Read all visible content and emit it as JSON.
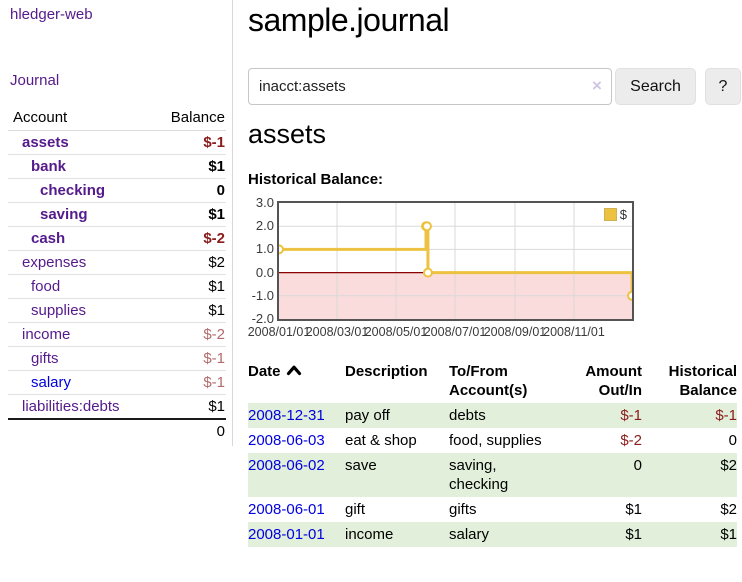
{
  "app_title": "hledger-web",
  "sidebar": {
    "journal_link": "Journal",
    "accounts_table": {
      "headers": {
        "account": "Account",
        "balance": "Balance"
      },
      "rows": [
        {
          "name": "assets",
          "balance": "$-1",
          "indent": 0,
          "bold": true,
          "balance_color": "negative"
        },
        {
          "name": "bank",
          "balance": "$1",
          "indent": 1,
          "bold": true,
          "balance_color": "normal"
        },
        {
          "name": "checking",
          "balance": "0",
          "indent": 2,
          "bold": true,
          "balance_color": "normal"
        },
        {
          "name": "saving",
          "balance": "$1",
          "indent": 2,
          "bold": true,
          "balance_color": "normal"
        },
        {
          "name": "cash",
          "balance": "$-2",
          "indent": 1,
          "bold": true,
          "balance_color": "negative"
        },
        {
          "name": "expenses",
          "balance": "$2",
          "indent": 0,
          "bold": false,
          "balance_color": "normal"
        },
        {
          "name": "food",
          "balance": "$1",
          "indent": 1,
          "bold": false,
          "balance_color": "normal"
        },
        {
          "name": "supplies",
          "balance": "$1",
          "indent": 1,
          "bold": false,
          "balance_color": "normal"
        },
        {
          "name": "income",
          "balance": "$-2",
          "indent": 0,
          "bold": false,
          "balance_color": "negative-muted"
        },
        {
          "name": "gifts",
          "balance": "$-1",
          "indent": 1,
          "bold": false,
          "balance_color": "negative-muted"
        },
        {
          "name": "salary",
          "balance": "$-1",
          "indent": 1,
          "bold": false,
          "balance_color": "negative-muted",
          "link_style": "unvisited"
        },
        {
          "name": "liabilities:debts",
          "balance": "$1",
          "indent": 0,
          "bold": false,
          "balance_color": "normal"
        }
      ],
      "total": "0"
    }
  },
  "header": {
    "title": "sample.journal"
  },
  "search": {
    "value": "inacct:assets",
    "clear_icon": "×",
    "button_label": "Search",
    "help_label": "?"
  },
  "account_page": {
    "heading": "assets",
    "chart_label": "Historical Balance:"
  },
  "chart_data": {
    "type": "line",
    "step": true,
    "title": "Historical Balance:",
    "series": [
      {
        "name": "$",
        "color": "#EDC240",
        "points": [
          [
            "2008-01-01",
            1
          ],
          [
            "2008-06-01",
            2
          ],
          [
            "2008-06-02",
            2
          ],
          [
            "2008-06-03",
            0
          ],
          [
            "2008-12-31",
            -1
          ]
        ]
      }
    ],
    "xlim": [
      "2008-01-01",
      "2008-12-31"
    ],
    "ylim": [
      -2,
      3
    ],
    "x_tick_labels": [
      "2008/01/01",
      "2008/03/01",
      "2008/05/01",
      "2008/07/01",
      "2008/09/01",
      "2008/11/01"
    ],
    "x_tick_dates": [
      "2008-01-01",
      "2008-03-01",
      "2008-05-01",
      "2008-07-01",
      "2008-09-01",
      "2008-11-01"
    ],
    "y_tick_labels": [
      "3.0",
      "2.0",
      "1.0",
      "0.0",
      "-1.0",
      "-2.0"
    ],
    "y_tick_values": [
      3,
      2,
      1,
      0,
      -1,
      -2
    ],
    "grid": true,
    "legend_position": "top-right",
    "negative_region_color": "#fbdcdc",
    "zero_line_color": "#8b0000",
    "grid_color": "#d9d9d9",
    "border_color": "#545454"
  },
  "register": {
    "columns": [
      {
        "line1": "Date",
        "line2": "",
        "align": "left",
        "sortable": true
      },
      {
        "line1": "Description",
        "line2": "",
        "align": "left"
      },
      {
        "line1": "To/From",
        "line2": "Account(s)",
        "align": "left"
      },
      {
        "line1": "Amount",
        "line2": "Out/In",
        "align": "right"
      },
      {
        "line1": "Historical",
        "line2": "Balance",
        "align": "right"
      }
    ],
    "rows": [
      {
        "date": "2008-12-31",
        "description": "pay off",
        "accounts": "debts",
        "amount": "$-1",
        "amount_negative": true,
        "balance": "$-1",
        "balance_negative": true
      },
      {
        "date": "2008-06-03",
        "description": "eat & shop",
        "accounts": "food, supplies",
        "amount": "$-2",
        "amount_negative": true,
        "balance": "0",
        "balance_negative": false
      },
      {
        "date": "2008-06-02",
        "description": "save",
        "accounts": "saving, checking",
        "amount": "0",
        "amount_negative": false,
        "balance": "$2",
        "balance_negative": false
      },
      {
        "date": "2008-06-01",
        "description": "gift",
        "accounts": "gifts",
        "amount": "$1",
        "amount_negative": false,
        "balance": "$2",
        "balance_negative": false
      },
      {
        "date": "2008-01-01",
        "description": "income",
        "accounts": "salary",
        "amount": "$1",
        "amount_negative": false,
        "balance": "$1",
        "balance_negative": false
      }
    ]
  },
  "colors": {
    "link_visited": "#551a8b",
    "link_unvisited": "#0000e0",
    "negative": "#8b1c1c",
    "negative_muted": "#b36b6b",
    "row_stripe_green": "#e2efda",
    "chart_series_gold": "#EDC240"
  }
}
